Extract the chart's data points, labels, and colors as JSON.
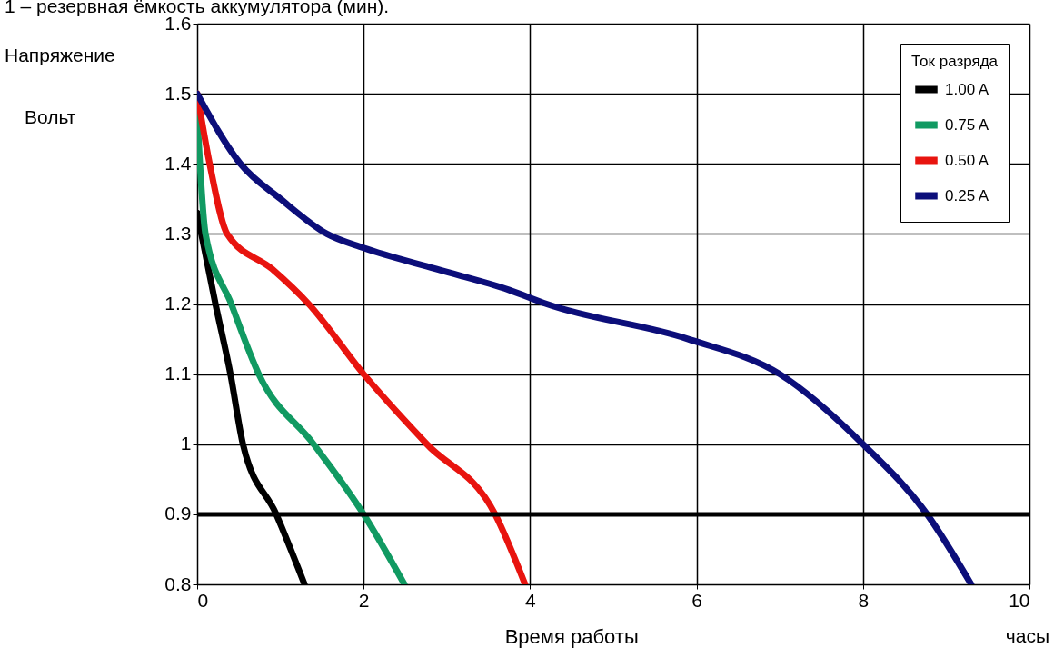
{
  "chart_data": {
    "type": "line",
    "xlabel": "Время работы",
    "ylabel": "Напряжение",
    "legend_title": "Ток разряда",
    "annotations": [
      "1 – резервная ёмкость аккумулятора (мин).",
      "Вольт",
      "часы"
    ],
    "xlim": [
      0,
      10
    ],
    "xticks": [
      0,
      2,
      4,
      6,
      8,
      10
    ],
    "ylim": [
      0.8,
      1.6
    ],
    "yticks": [
      0.8,
      0.9,
      1,
      1.1,
      1.2,
      1.3,
      1.4,
      1.5,
      1.6
    ],
    "grid": true,
    "legend": "top right",
    "marker": "none",
    "line_style": "solid",
    "ref_lines": [
      {
        "axis": "y",
        "value": 0.9,
        "color": "#000000"
      }
    ],
    "series": [
      {
        "name": "1.00  A",
        "color": "#000000",
        "x": [
          0,
          0.22,
          0.4,
          0.55,
          0.95,
          1.29
        ],
        "values": [
          1.33,
          1.2,
          1.1,
          1.0,
          0.9,
          0.8
        ]
      },
      {
        "name": "0.75  A",
        "color": "#119a62",
        "x": [
          0,
          0.1,
          0.41,
          0.74,
          1.4,
          2.0,
          2.49
        ],
        "values": [
          1.47,
          1.3,
          1.2,
          1.1,
          1.0,
          0.9,
          0.8
        ]
      },
      {
        "name": "0.50  A",
        "color": "#e8140f",
        "x": [
          0,
          0.15,
          0.36,
          0.9,
          1.34,
          2.0,
          2.76,
          3.58,
          3.94
        ],
        "values": [
          1.5,
          1.4,
          1.3,
          1.25,
          1.2,
          1.1,
          1.0,
          0.9,
          0.8
        ]
      },
      {
        "name": "0.25  A",
        "color": "#0c0e7a",
        "x": [
          0,
          0.52,
          1.0,
          1.56,
          2.0,
          2.87,
          3.75,
          4.2,
          5.9,
          7.0,
          8.0,
          8.77,
          9.3
        ],
        "values": [
          1.5,
          1.4,
          1.35,
          1.3,
          1.28,
          1.25,
          1.22,
          1.2,
          1.15,
          1.1,
          1.0,
          0.9,
          0.8
        ]
      }
    ]
  }
}
